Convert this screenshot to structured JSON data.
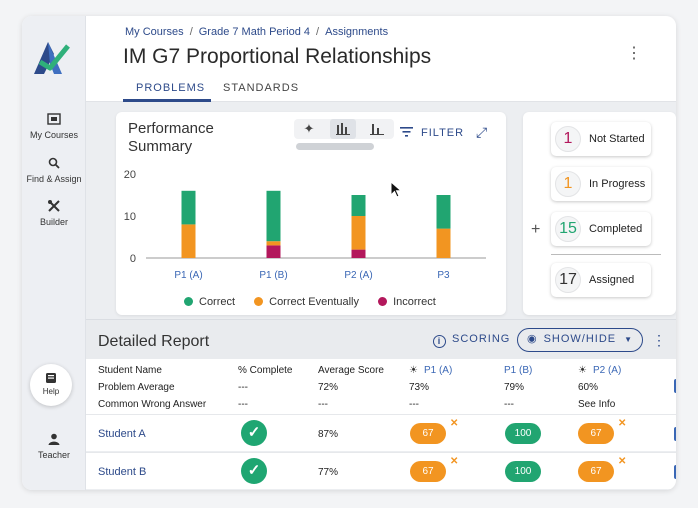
{
  "sidebar": {
    "items": [
      {
        "label": "My Courses",
        "icon": "courses-icon"
      },
      {
        "label": "Find & Assign",
        "icon": "search-icon"
      },
      {
        "label": "Builder",
        "icon": "builder-icon"
      }
    ],
    "help_label": "Help",
    "teacher_label": "Teacher"
  },
  "header": {
    "breadcrumbs": [
      "My Courses",
      "Grade 7 Math Period 4",
      "Assignments"
    ],
    "title": "IM G7 Proportional Relationships",
    "tabs": [
      "PROBLEMS",
      "STANDARDS"
    ]
  },
  "performance": {
    "title": "Performance Summary",
    "filter_label": "FILTER"
  },
  "chart_data": {
    "type": "bar",
    "stacked": true,
    "categories": [
      "P1 (A)",
      "P1 (B)",
      "P2 (A)",
      "P3"
    ],
    "yticks": [
      0,
      10,
      20
    ],
    "ylim": [
      0,
      20
    ],
    "series": [
      {
        "name": "Incorrect",
        "color": "#b3185c",
        "values": [
          0,
          3,
          2,
          0
        ]
      },
      {
        "name": "Correct Eventually",
        "color": "#f29521",
        "values": [
          8,
          1,
          8,
          7
        ]
      },
      {
        "name": "Correct",
        "color": "#21a571",
        "values": [
          8,
          12,
          5,
          8
        ]
      }
    ],
    "legend": [
      "Correct",
      "Correct Eventually",
      "Incorrect"
    ]
  },
  "status": {
    "items": [
      {
        "count": "1",
        "label": "Not Started",
        "color": "#b3185c"
      },
      {
        "count": "1",
        "label": "In Progress",
        "color": "#f29521"
      },
      {
        "count": "15",
        "label": "Completed",
        "color": "#21a571"
      },
      {
        "count": "17",
        "label": "Assigned",
        "color": "#333333"
      }
    ]
  },
  "report": {
    "title": "Detailed Report",
    "scoring_label": "SCORING",
    "showhide_label": "SHOW/HIDE",
    "row_labels": [
      "Student Name",
      "Problem Average",
      "Common Wrong Answer"
    ],
    "pct_complete_header": "% Complete",
    "avg_score_header": "Average Score",
    "problems": [
      {
        "name": "P1 (A)",
        "average": "73%",
        "wrong": "---",
        "bulb": true
      },
      {
        "name": "P1 (B)",
        "average": "79%",
        "wrong": "---",
        "bulb": false
      },
      {
        "name": "P2 (A)",
        "average": "60%",
        "wrong": "See Info",
        "bulb": true
      }
    ],
    "pct_average": "---",
    "pct_wrong": "---",
    "avg_average": "72%",
    "avg_wrong": "---",
    "students": [
      {
        "name": "Student A",
        "average": "87%",
        "scores": [
          "67",
          "100",
          "67"
        ]
      },
      {
        "name": "Student B",
        "average": "77%",
        "scores": [
          "67",
          "100",
          "67"
        ]
      }
    ]
  }
}
